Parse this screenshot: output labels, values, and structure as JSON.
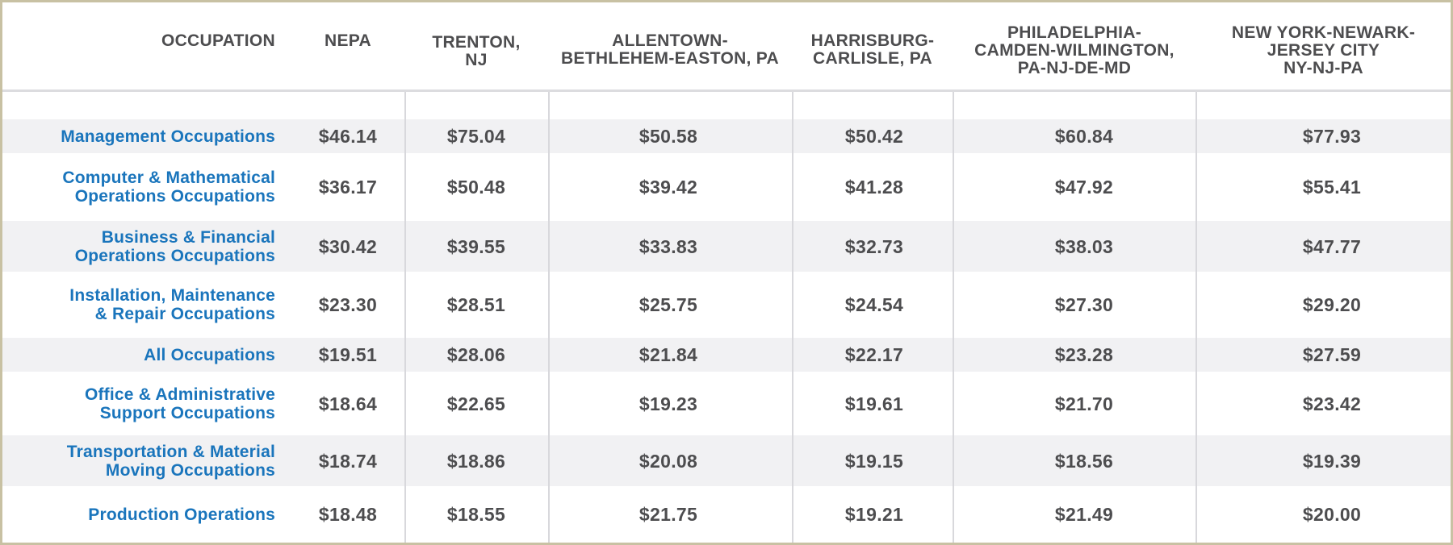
{
  "chart_data": {
    "type": "table",
    "columns": [
      "OCCUPATION",
      "NEPA",
      "TRENTON,\nNJ",
      "ALLENTOWN-\nBETHLEHEM-EASTON, PA",
      "HARRISBURG-\nCARLISLE, PA",
      "PHILADELPHIA-\nCAMDEN-WILMINGTON,\nPA-NJ-DE-MD",
      "NEW YORK-NEWARK-\nJERSEY CITY\nNY-NJ-PA"
    ],
    "rows": [
      {
        "occupation": "Management Occupations",
        "values": [
          "$46.14",
          "$75.04",
          "$50.58",
          "$50.42",
          "$60.84",
          "$77.93"
        ]
      },
      {
        "occupation": "Computer & Mathematical\nOperations Occupations",
        "values": [
          "$36.17",
          "$50.48",
          "$39.42",
          "$41.28",
          "$47.92",
          "$55.41"
        ]
      },
      {
        "occupation": "Business & Financial\nOperations Occupations",
        "values": [
          "$30.42",
          "$39.55",
          "$33.83",
          "$32.73",
          "$38.03",
          "$47.77"
        ]
      },
      {
        "occupation": "Installation, Maintenance\n& Repair Occupations",
        "values": [
          "$23.30",
          "$28.51",
          "$25.75",
          "$24.54",
          "$27.30",
          "$29.20"
        ]
      },
      {
        "occupation": "All Occupations",
        "values": [
          "$19.51",
          "$28.06",
          "$21.84",
          "$22.17",
          "$23.28",
          "$27.59"
        ]
      },
      {
        "occupation": "Office & Administrative\nSupport Occupations",
        "values": [
          "$18.64",
          "$22.65",
          "$19.23",
          "$19.61",
          "$21.70",
          "$23.42"
        ]
      },
      {
        "occupation": "Transportation & Material\nMoving Occupations",
        "values": [
          "$18.74",
          "$18.86",
          "$20.08",
          "$19.15",
          "$18.56",
          "$19.39"
        ]
      },
      {
        "occupation": "Production Operations",
        "values": [
          "$18.48",
          "$18.55",
          "$21.75",
          "$19.21",
          "$21.49",
          "$20.00"
        ]
      }
    ]
  },
  "colors": {
    "occupation_text": "#1a75bc",
    "value_text": "#4d4d4f",
    "header_text": "#4d4d4f",
    "band_grey": "#f1f1f3",
    "frame_border": "#c8c1a3"
  }
}
